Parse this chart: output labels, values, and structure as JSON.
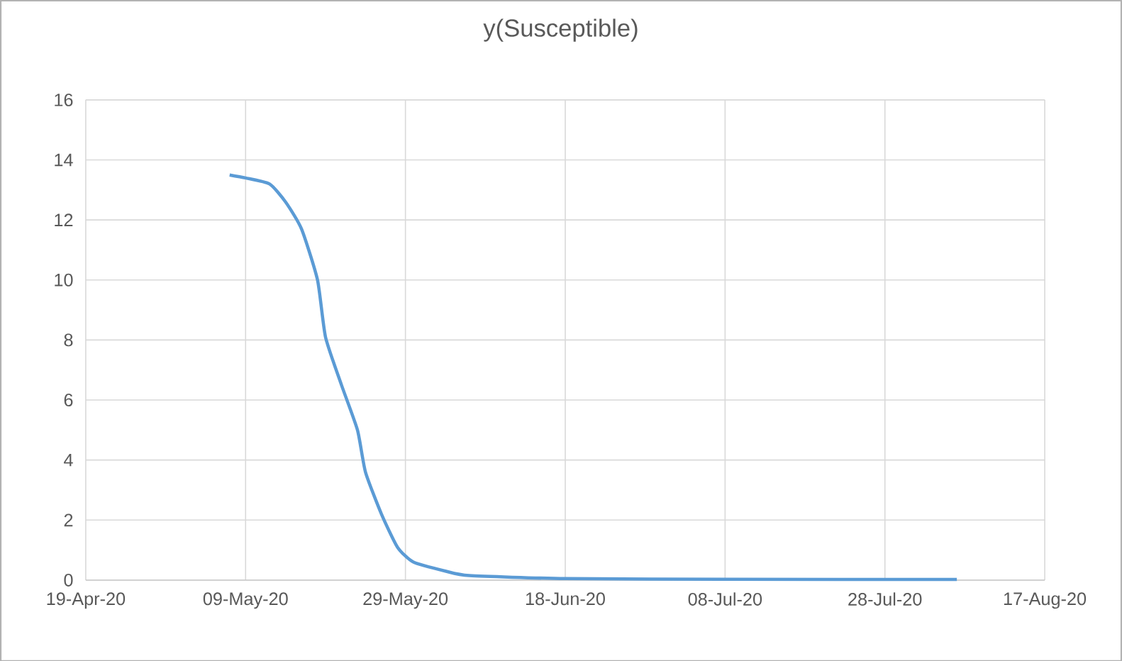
{
  "chart_data": {
    "type": "line",
    "title": "y(Susceptible)",
    "x": [
      "2020-05-07",
      "2020-05-09",
      "2020-05-12",
      "2020-05-14",
      "2020-05-16",
      "2020-05-18",
      "2020-05-19",
      "2020-05-21",
      "2020-05-23",
      "2020-05-24",
      "2020-05-26",
      "2020-05-28",
      "2020-05-30",
      "2020-06-03",
      "2020-06-06",
      "2020-06-18",
      "2020-07-08",
      "2020-08-06"
    ],
    "series": [
      {
        "color": "#5b9bd5",
        "values": [
          13.5,
          13.4,
          13.2,
          12.6,
          11.7,
          10.0,
          8.1,
          6.5,
          5.0,
          3.6,
          2.2,
          1.1,
          0.6,
          0.3,
          0.15,
          0.05,
          0.03,
          0.02
        ]
      }
    ],
    "xlim": [
      "2020-04-19",
      "2020-08-17"
    ],
    "xticks": [
      {
        "value": "2020-04-19",
        "label": "19-Apr-20"
      },
      {
        "value": "2020-05-09",
        "label": "09-May-20"
      },
      {
        "value": "2020-05-29",
        "label": "29-May-20"
      },
      {
        "value": "2020-06-18",
        "label": "18-Jun-20"
      },
      {
        "value": "2020-07-08",
        "label": "08-Jul-20"
      },
      {
        "value": "2020-07-28",
        "label": "28-Jul-20"
      },
      {
        "value": "2020-08-17",
        "label": "17-Aug-20"
      }
    ],
    "ylim": [
      0,
      16
    ],
    "yticks": [
      0,
      2,
      4,
      6,
      8,
      10,
      12,
      14,
      16
    ],
    "grid": true,
    "marker": "none",
    "line_style": "solid"
  }
}
